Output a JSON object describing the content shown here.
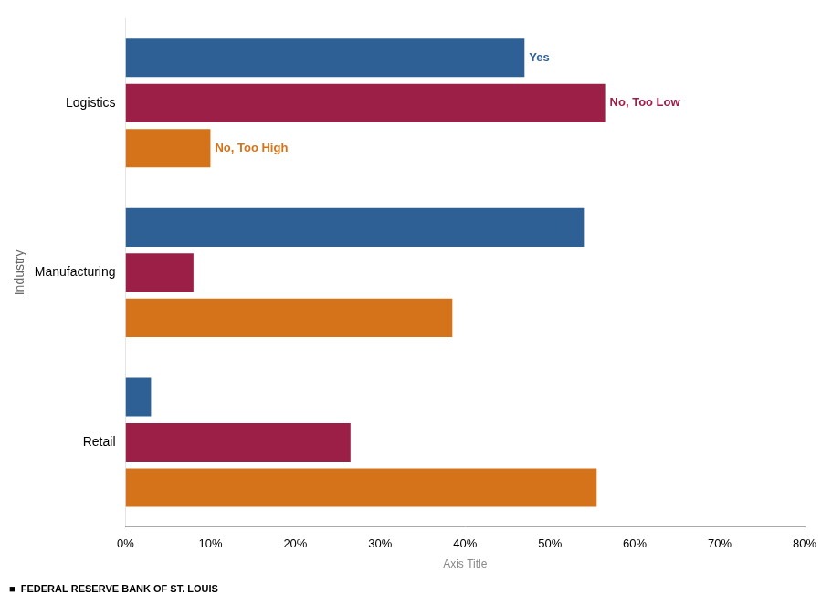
{
  "chart_data": {
    "type": "bar",
    "orientation": "horizontal",
    "categories": [
      "Logistics",
      "Manufacturing",
      "Retail"
    ],
    "series": [
      {
        "name": "Yes",
        "color": "#2E6096",
        "values": [
          0.47,
          0.54,
          0.03
        ]
      },
      {
        "name": "No, Too Low",
        "color": "#9B1F47",
        "values": [
          0.565,
          0.08,
          0.265
        ]
      },
      {
        "name": "No, Too High",
        "color": "#D4731A",
        "values": [
          0.1,
          0.385,
          0.555
        ]
      }
    ],
    "annotations": [
      {
        "text": "Yes",
        "series": "Yes",
        "category": "Logistics"
      },
      {
        "text": "No, Too Low",
        "series": "No, Too Low",
        "category": "Logistics"
      },
      {
        "text": "No, Too High",
        "series": "No, Too High",
        "category": "Logistics"
      }
    ],
    "xlabel": "Axis Title",
    "ylabel": "Industry",
    "xlim": [
      0,
      0.8
    ],
    "xticks": [
      {
        "value": 0,
        "label": "0%"
      },
      {
        "value": 0.1,
        "label": "10%"
      },
      {
        "value": 0.2,
        "label": "20%"
      },
      {
        "value": 0.3,
        "label": "30%"
      },
      {
        "value": 0.4,
        "label": "40%"
      },
      {
        "value": 0.5,
        "label": "50%"
      },
      {
        "value": 0.6,
        "label": "60%"
      },
      {
        "value": 0.7,
        "label": "70%"
      },
      {
        "value": 0.8,
        "label": "80%"
      }
    ],
    "grid": false,
    "footer": "■  FEDERAL RESERVE BANK OF ST. LOUIS"
  }
}
